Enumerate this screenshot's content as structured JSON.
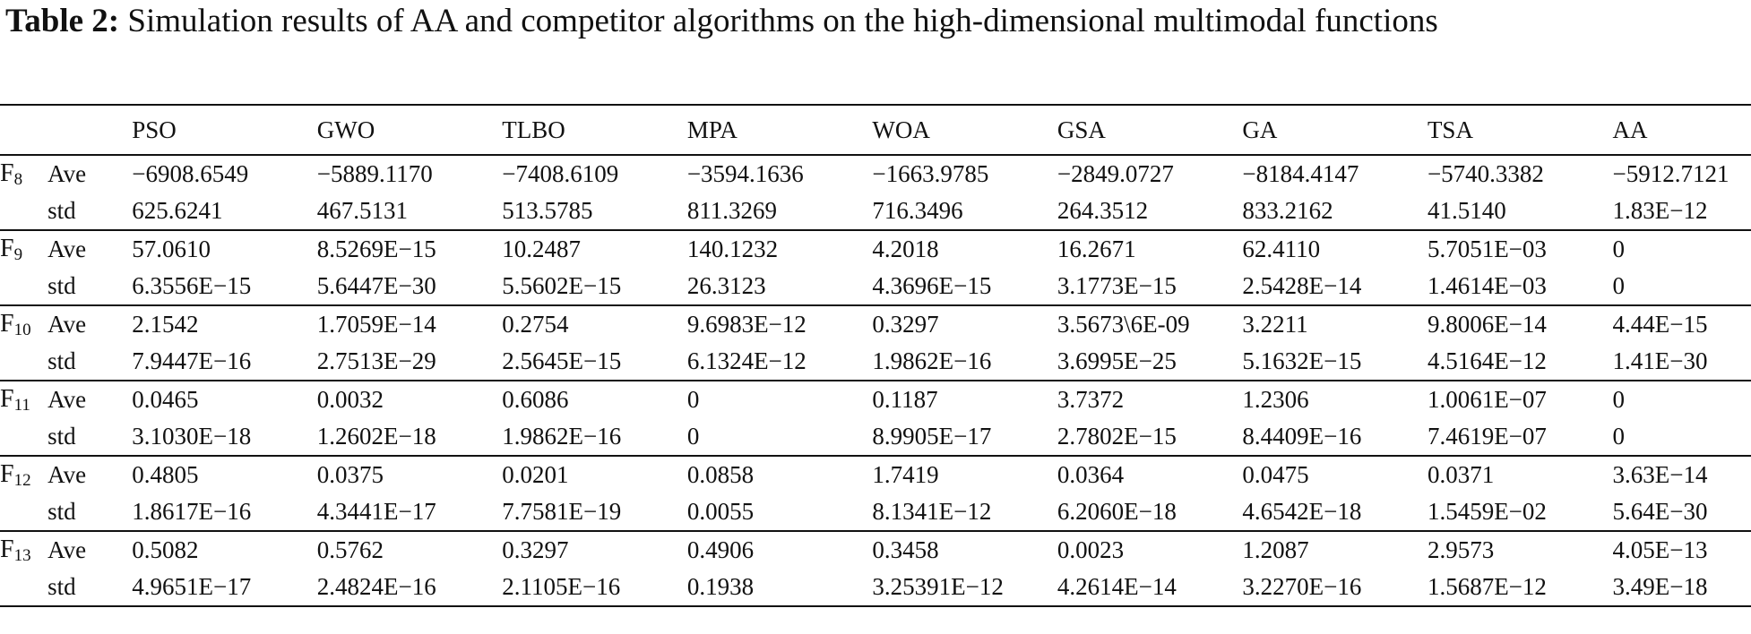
{
  "caption": {
    "label": "Table 2:",
    "text": "Simulation results of AA and competitor algorithms on the high-dimensional multimodal functions"
  },
  "table": {
    "columns": [
      "PSO",
      "GWO",
      "TLBO",
      "MPA",
      "WOA",
      "GSA",
      "GA",
      "TSA",
      "AA"
    ],
    "groups": [
      {
        "f": "F",
        "sub": "8",
        "rows": [
          {
            "metric": "Ave",
            "values": [
              "−6908.6549",
              "−5889.1170",
              "−7408.6109",
              "−3594.1636",
              "−1663.9785",
              "−2849.0727",
              "−8184.4147",
              "−5740.3382",
              "−5912.7121"
            ]
          },
          {
            "metric": "std",
            "values": [
              "625.6241",
              "467.5131",
              "513.5785",
              "811.3269",
              "716.3496",
              "264.3512",
              "833.2162",
              "41.5140",
              "1.83E−12"
            ]
          }
        ]
      },
      {
        "f": "F",
        "sub": "9",
        "rows": [
          {
            "metric": "Ave",
            "values": [
              "57.0610",
              "8.5269E−15",
              "10.2487",
              "140.1232",
              "4.2018",
              "16.2671",
              "62.4110",
              "5.7051E−03",
              "0"
            ]
          },
          {
            "metric": "std",
            "values": [
              "6.3556E−15",
              "5.6447E−30",
              "5.5602E−15",
              "26.3123",
              "4.3696E−15",
              "3.1773E−15",
              "2.5428E−14",
              "1.4614E−03",
              "0"
            ]
          }
        ]
      },
      {
        "f": "F",
        "sub": "10",
        "rows": [
          {
            "metric": "Ave",
            "values": [
              "2.1542",
              "1.7059E−14",
              "0.2754",
              "9.6983E−12",
              "0.3297",
              "3.5673\\6E-09",
              "3.2211",
              "9.8006E−14",
              "4.44E−15"
            ]
          },
          {
            "metric": "std",
            "values": [
              "7.9447E−16",
              "2.7513E−29",
              "2.5645E−15",
              "6.1324E−12",
              "1.9862E−16",
              "3.6995E−25",
              "5.1632E−15",
              "4.5164E−12",
              "1.41E−30"
            ]
          }
        ]
      },
      {
        "f": "F",
        "sub": "11",
        "rows": [
          {
            "metric": "Ave",
            "values": [
              "0.0465",
              "0.0032",
              "0.6086",
              "0",
              "0.1187",
              "3.7372",
              "1.2306",
              "1.0061E−07",
              "0"
            ]
          },
          {
            "metric": "std",
            "values": [
              "3.1030E−18",
              "1.2602E−18",
              "1.9862E−16",
              "0",
              "8.9905E−17",
              "2.7802E−15",
              "8.4409E−16",
              "7.4619E−07",
              "0"
            ]
          }
        ]
      },
      {
        "f": "F",
        "sub": "12",
        "rows": [
          {
            "metric": "Ave",
            "values": [
              "0.4805",
              "0.0375",
              "0.0201",
              "0.0858",
              "1.7419",
              "0.0364",
              "0.0475",
              "0.0371",
              "3.63E−14"
            ]
          },
          {
            "metric": "std",
            "values": [
              "1.8617E−16",
              "4.3441E−17",
              "7.7581E−19",
              "0.0055",
              "8.1341E−12",
              "6.2060E−18",
              "4.6542E−18",
              "1.5459E−02",
              "5.64E−30"
            ]
          }
        ]
      },
      {
        "f": "F",
        "sub": "13",
        "rows": [
          {
            "metric": "Ave",
            "values": [
              "0.5082",
              "0.5762",
              "0.3297",
              "0.4906",
              "0.3458",
              "0.0023",
              "1.2087",
              "2.9573",
              "4.05E−13"
            ]
          },
          {
            "metric": "std",
            "values": [
              "4.9651E−17",
              "2.4824E−16",
              "2.1105E−16",
              "0.1938",
              "3.25391E−12",
              "4.2614E−14",
              "3.2270E−16",
              "1.5687E−12",
              "3.49E−18"
            ]
          }
        ]
      }
    ]
  }
}
